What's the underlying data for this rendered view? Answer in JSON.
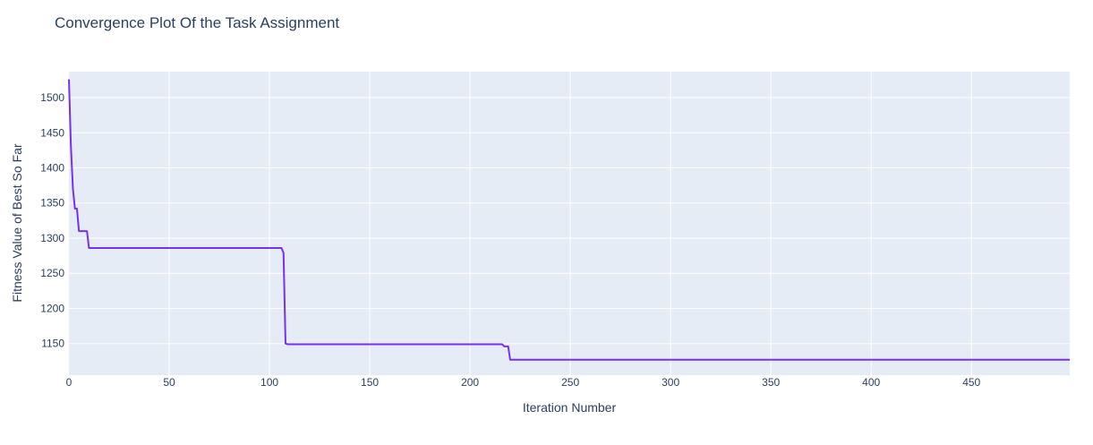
{
  "chart_data": {
    "type": "line",
    "title": "Convergence Plot Of the Task Assignment",
    "xlabel": "Iteration Number",
    "ylabel": "Fitness Value of Best So Far",
    "xlim": [
      0,
      499
    ],
    "ylim": [
      1105,
      1537
    ],
    "xticks": [
      0,
      50,
      100,
      150,
      200,
      250,
      300,
      350,
      400,
      450
    ],
    "yticks": [
      1150,
      1200,
      1250,
      1300,
      1350,
      1400,
      1450,
      1500
    ],
    "grid": true,
    "colors": {
      "plot_bg": "#e5ecf6",
      "grid": "#ffffff",
      "line": "#7b2ff0",
      "text": "#2a3f5f"
    },
    "series": [
      {
        "x": [
          0,
          1,
          2,
          3,
          4,
          5,
          6,
          7,
          8,
          9,
          10,
          11,
          106,
          107,
          108,
          109,
          110,
          216,
          217,
          218,
          219,
          220,
          221,
          499
        ],
        "y": [
          1526,
          1430,
          1370,
          1342,
          1342,
          1310,
          1310,
          1310,
          1310,
          1310,
          1286,
          1286,
          1286,
          1279,
          1150,
          1149,
          1149,
          1149,
          1146,
          1146,
          1146,
          1127,
          1127,
          1127
        ]
      }
    ]
  }
}
